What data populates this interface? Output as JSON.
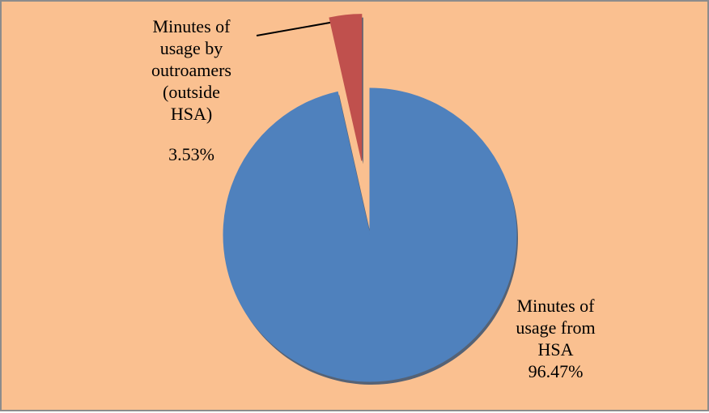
{
  "chart_data": {
    "type": "pie",
    "categories": [
      "Minutes of usage from HSA",
      "Minutes of usage by outroamers (outside HSA)"
    ],
    "values": [
      96.47,
      3.53
    ],
    "value_labels": [
      "96.47%",
      "3.53%"
    ],
    "colors": [
      "#4f81bd",
      "#c0504d"
    ],
    "exploded": [
      false,
      true
    ]
  }
}
